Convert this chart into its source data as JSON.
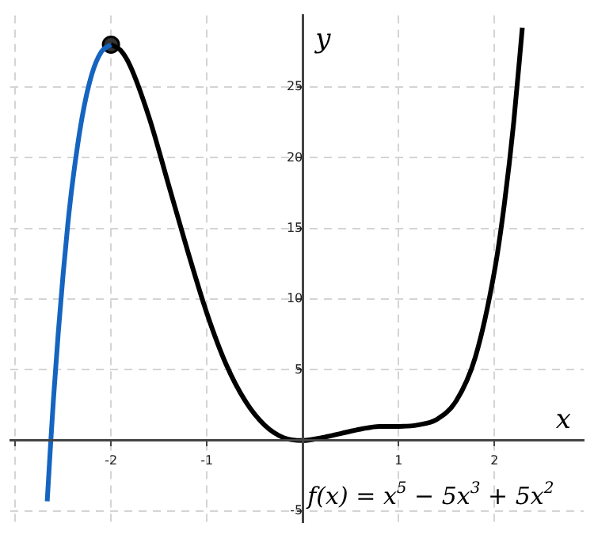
{
  "chart_data": {
    "type": "line",
    "xlabel": "x",
    "ylabel": "y",
    "annotations": [
      "f(x) = x$^{5}$ − 5x$^{3}$ + 5x$^{2}$"
    ],
    "xlim": [
      -3.05,
      2.93
    ],
    "ylim": [
      -5.8,
      30.06
    ],
    "xticks": [
      {
        "value": -3,
        "label": null
      },
      -2,
      -1,
      1,
      2
    ],
    "yticks": [
      -5,
      5,
      10,
      15,
      20,
      25
    ],
    "grid": true,
    "legend": false,
    "series": [
      {
        "type": "line",
        "color": "#1565c0",
        "marker": "none",
        "x": [
          -2.665,
          -2.63,
          -2.6,
          -2.55,
          -2.5,
          -2.45,
          -2.4,
          -2.3,
          -2.2,
          -2.1,
          -2.0
        ],
        "values": [
          -4.3,
          -0.3,
          2.9,
          7.6,
          11.7,
          15.3,
          18.3,
          22.9,
          25.9,
          27.5,
          28
        ]
      },
      {
        "type": "line",
        "color": "#000000",
        "marker": "none",
        "x": [
          -2.0,
          -1.9,
          -1.8,
          -1.6,
          -1.4,
          -1.2,
          -1.0,
          -0.8,
          -0.6,
          -0.4,
          -0.2,
          0,
          0.2,
          0.4,
          0.6,
          0.8,
          1.0,
          1.2,
          1.4,
          1.6,
          1.8,
          2.0,
          2.1,
          2.2,
          2.29
        ],
        "values": [
          28,
          27.6,
          26.5,
          22.8,
          18.1,
          13.4,
          9,
          5.4,
          2.8,
          1.1,
          0.2,
          0,
          0.2,
          0.5,
          0.8,
          1,
          1,
          1.1,
          1.5,
          2.8,
          5.9,
          12,
          16.6,
          22.5,
          29.2
        ]
      },
      {
        "type": "scatter",
        "color": "#333333",
        "marker": "circle",
        "x": [
          -2
        ],
        "values": [
          28
        ]
      }
    ]
  }
}
